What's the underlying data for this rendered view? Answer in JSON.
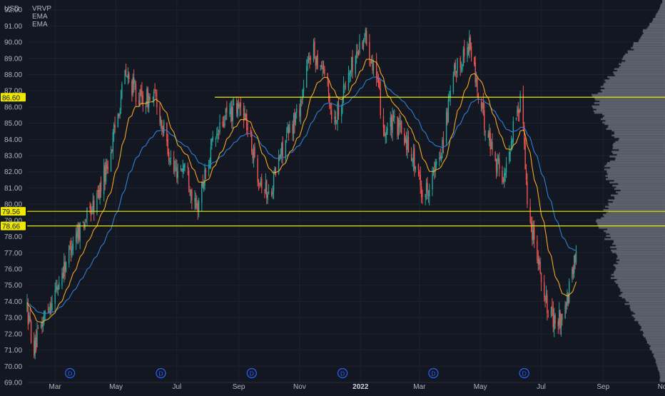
{
  "currency": "USD",
  "indicators": [
    "VRVP",
    "EMA",
    "EMA"
  ],
  "colors": {
    "background": "#131722",
    "up_candle": "#26a69a",
    "down_candle": "#ef5350",
    "ema_fast": "#f5a623",
    "ema_slow": "#2f7fd6",
    "level_line": "#f0e800",
    "volume_profile": "#8c8f99",
    "marker": "#2962ff"
  },
  "event_marker_label": "D",
  "chart_data": {
    "type": "candlestick",
    "ylim": [
      69.0,
      92.6
    ],
    "y_ticks": [
      "69.00",
      "70.00",
      "71.00",
      "72.00",
      "73.00",
      "74.00",
      "75.00",
      "76.00",
      "77.00",
      "78.00",
      "79.00",
      "80.00",
      "81.00",
      "82.00",
      "83.00",
      "84.00",
      "85.00",
      "86.00",
      "87.00",
      "88.00",
      "89.00",
      "90.00",
      "91.00",
      "92.00"
    ],
    "x_ticks": [
      "Mar",
      "May",
      "Jul",
      "Sep",
      "Nov",
      "2022",
      "Mar",
      "May",
      "Jul",
      "Sep",
      "Nov"
    ],
    "x_tick_dates": [
      "2021-03-01",
      "2021-05-01",
      "2021-07-01",
      "2021-09-01",
      "2021-11-01",
      "2022-01-01",
      "2022-03-01",
      "2022-05-01",
      "2022-07-01",
      "2022-09-01",
      "2022-11-01"
    ],
    "start_date": "2021-02-01",
    "end_date": "2022-11-02",
    "last_candle_date": "2022-08-05",
    "price_anchors": [
      [
        "2021-02-01",
        73.5
      ],
      [
        "2021-02-08",
        71.0
      ],
      [
        "2021-02-20",
        73.5
      ],
      [
        "2021-03-01",
        74.5
      ],
      [
        "2021-03-20",
        78.0
      ],
      [
        "2021-04-10",
        80.0
      ],
      [
        "2021-04-25",
        83.0
      ],
      [
        "2021-05-10",
        88.0
      ],
      [
        "2021-05-25",
        86.5
      ],
      [
        "2021-06-10",
        86.5
      ],
      [
        "2021-06-28",
        82.0
      ],
      [
        "2021-07-10",
        82.5
      ],
      [
        "2021-07-20",
        79.5
      ],
      [
        "2021-08-05",
        83.5
      ],
      [
        "2021-08-20",
        85.5
      ],
      [
        "2021-09-05",
        86.0
      ],
      [
        "2021-09-20",
        82.0
      ],
      [
        "2021-10-01",
        80.5
      ],
      [
        "2021-10-15",
        83.5
      ],
      [
        "2021-11-01",
        86.0
      ],
      [
        "2021-11-12",
        89.5
      ],
      [
        "2021-11-25",
        88.5
      ],
      [
        "2021-12-05",
        85.0
      ],
      [
        "2021-12-20",
        88.0
      ],
      [
        "2022-01-05",
        90.5
      ],
      [
        "2022-01-15",
        88.5
      ],
      [
        "2022-01-25",
        84.5
      ],
      [
        "2022-02-05",
        85.0
      ],
      [
        "2022-02-20",
        83.5
      ],
      [
        "2022-03-05",
        80.5
      ],
      [
        "2022-03-20",
        82.5
      ],
      [
        "2022-04-05",
        88.0
      ],
      [
        "2022-04-20",
        90.0
      ],
      [
        "2022-05-01",
        86.0
      ],
      [
        "2022-05-15",
        83.0
      ],
      [
        "2022-05-25",
        81.5
      ],
      [
        "2022-06-05",
        85.5
      ],
      [
        "2022-06-12",
        86.5
      ],
      [
        "2022-06-18",
        79.0
      ],
      [
        "2022-06-25",
        78.0
      ],
      [
        "2022-07-05",
        74.0
      ],
      [
        "2022-07-15",
        72.5
      ],
      [
        "2022-07-25",
        73.5
      ],
      [
        "2022-08-01",
        75.5
      ],
      [
        "2022-08-05",
        77.2
      ]
    ],
    "horizontal_levels": [
      {
        "value": 86.6,
        "label": "86.60",
        "from_date": "2021-08-08"
      },
      {
        "value": 79.56,
        "label": "79.56",
        "from_date": "2021-02-01"
      },
      {
        "value": 78.66,
        "label": "78.66",
        "from_date": "2021-02-01"
      }
    ],
    "event_marker_dates": [
      "2021-03-16",
      "2021-06-15",
      "2021-09-14",
      "2021-12-14",
      "2022-03-15",
      "2022-06-14"
    ],
    "volume_profile_anchors": [
      [
        69.5,
        0.06
      ],
      [
        70.5,
        0.12
      ],
      [
        71.5,
        0.2
      ],
      [
        72.5,
        0.3
      ],
      [
        73.5,
        0.4
      ],
      [
        74.5,
        0.52
      ],
      [
        75.5,
        0.6
      ],
      [
        76.5,
        0.55
      ],
      [
        77.5,
        0.62
      ],
      [
        78.5,
        0.72
      ],
      [
        79.2,
        0.78
      ],
      [
        80.0,
        0.65
      ],
      [
        81.0,
        0.55
      ],
      [
        82.0,
        0.72
      ],
      [
        83.0,
        0.6
      ],
      [
        84.0,
        0.55
      ],
      [
        85.0,
        0.7
      ],
      [
        86.0,
        0.8
      ],
      [
        86.6,
        0.82
      ],
      [
        87.5,
        0.7
      ],
      [
        88.5,
        0.55
      ],
      [
        89.5,
        0.4
      ],
      [
        90.5,
        0.28
      ],
      [
        91.5,
        0.12
      ],
      [
        92.5,
        0.03
      ]
    ],
    "ema_fast_period": 20,
    "ema_slow_period": 50
  }
}
